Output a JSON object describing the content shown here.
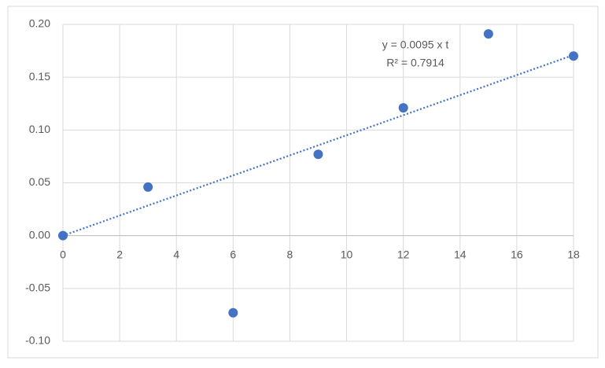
{
  "chart_data": {
    "type": "scatter",
    "x": [
      0,
      3,
      6,
      9,
      12,
      15,
      18
    ],
    "values": [
      0,
      0.046,
      -0.073,
      0.077,
      0.121,
      0.191,
      0.17
    ],
    "color": "#4472c4",
    "xlim": [
      0,
      18
    ],
    "xticks": [
      0,
      2,
      4,
      6,
      8,
      10,
      12,
      14,
      16,
      18
    ],
    "ylim": [
      -0.1,
      0.2
    ],
    "yticks": [
      {
        "value": -0.1,
        "label": "-0.10"
      },
      {
        "value": -0.05,
        "label": "-0.05"
      },
      {
        "value": 0,
        "label": "0.00"
      },
      {
        "value": 0.05,
        "label": "0.05"
      },
      {
        "value": 0.1,
        "label": "0.10"
      },
      {
        "value": 0.15,
        "label": "0.15"
      },
      {
        "value": 0.2,
        "label": "0.20"
      }
    ],
    "grid": true,
    "trendline": {
      "slope": 0.0095,
      "equation": "y = 0.0095 x t",
      "r_squared": "R² = 0.7914"
    }
  }
}
